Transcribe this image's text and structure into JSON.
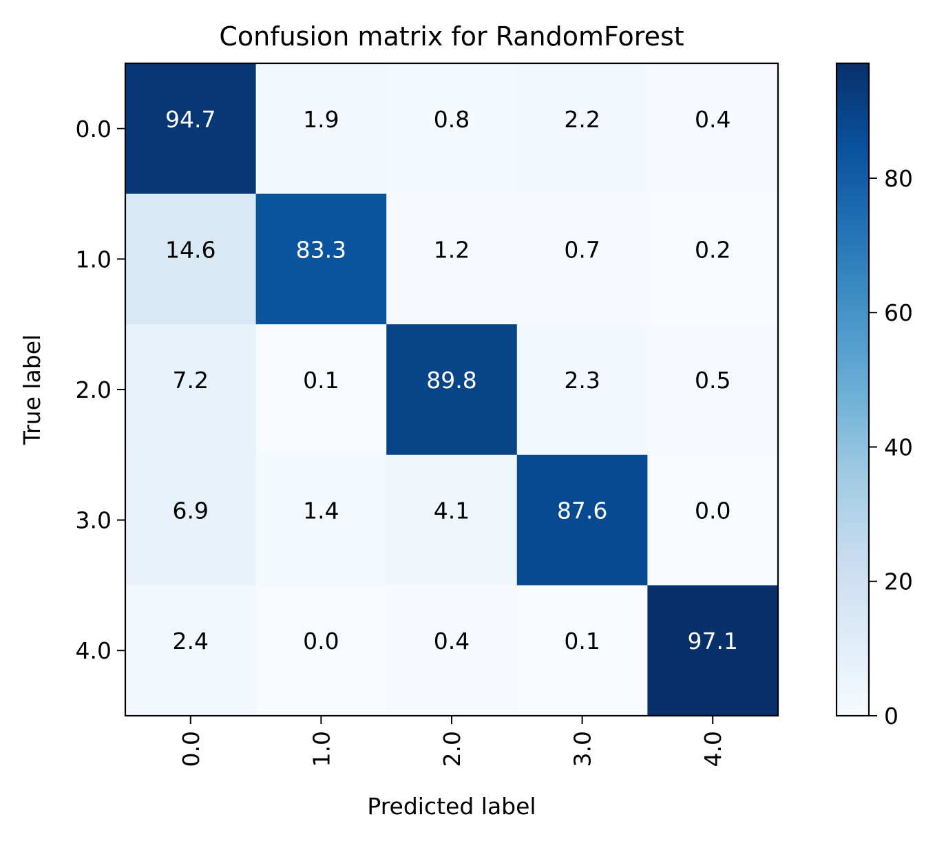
{
  "chart_data": {
    "type": "heatmap",
    "title": "Confusion matrix for RandomForest",
    "xlabel": "Predicted label",
    "ylabel": "True label",
    "x_categories": [
      "0.0",
      "1.0",
      "2.0",
      "3.0",
      "4.0"
    ],
    "y_categories": [
      "0.0",
      "1.0",
      "2.0",
      "3.0",
      "4.0"
    ],
    "values": [
      [
        94.7,
        1.9,
        0.8,
        2.2,
        0.4
      ],
      [
        14.6,
        83.3,
        1.2,
        0.7,
        0.2
      ],
      [
        7.2,
        0.1,
        89.8,
        2.3,
        0.5
      ],
      [
        6.9,
        1.4,
        4.1,
        87.6,
        0.0
      ],
      [
        2.4,
        0.0,
        0.4,
        0.1,
        97.1
      ]
    ],
    "value_labels": [
      [
        "94.7",
        "1.9",
        "0.8",
        "2.2",
        "0.4"
      ],
      [
        "14.6",
        "83.3",
        "1.2",
        "0.7",
        "0.2"
      ],
      [
        "7.2",
        "0.1",
        "89.8",
        "2.3",
        "0.5"
      ],
      [
        "6.9",
        "1.4",
        "4.1",
        "87.6",
        "0.0"
      ],
      [
        "2.4",
        "0.0",
        "0.4",
        "0.1",
        "97.1"
      ]
    ],
    "colormap": "Blues",
    "colormap_stops": [
      "#f7fbff",
      "#deebf7",
      "#c6dbef",
      "#9ecae1",
      "#6baed6",
      "#4292c6",
      "#2171b5",
      "#08519c",
      "#08306b"
    ],
    "color_range": [
      0,
      97.1
    ],
    "colorbar": {
      "ticks": [
        0,
        20,
        40,
        60,
        80
      ],
      "tick_labels": [
        "0",
        "20",
        "40",
        "60",
        "80"
      ]
    },
    "text_color_dark": "#000000",
    "text_color_light": "#ffffff",
    "x_tick_rotation": "vertical"
  }
}
